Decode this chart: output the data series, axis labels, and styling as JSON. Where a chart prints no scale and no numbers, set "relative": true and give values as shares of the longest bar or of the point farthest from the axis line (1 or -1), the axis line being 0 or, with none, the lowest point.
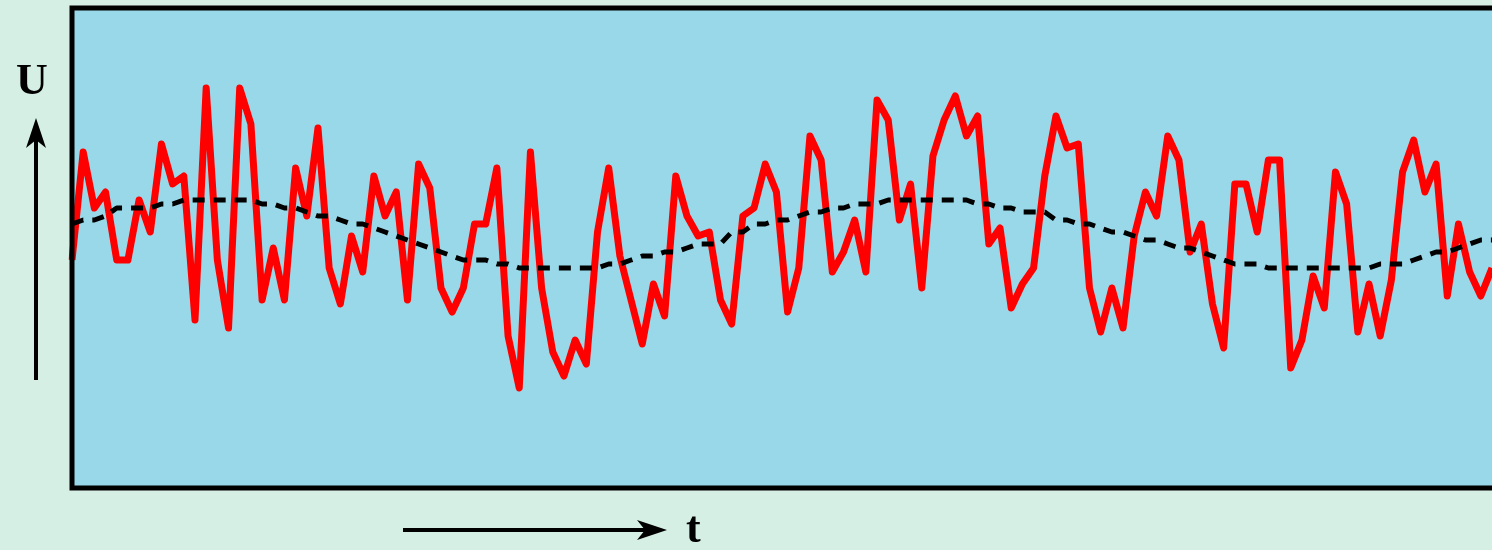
{
  "chart_data": {
    "type": "line",
    "relative": true,
    "xlabel": "t",
    "ylabel": "U",
    "categories": [
      null,
      null,
      null,
      null,
      null,
      null,
      null,
      null,
      null,
      null,
      null,
      null,
      null,
      null,
      null,
      null,
      null,
      null,
      null,
      null,
      null,
      null,
      null,
      null,
      null,
      null,
      null,
      null,
      null,
      null,
      null,
      null,
      null,
      null,
      null,
      null,
      null,
      null,
      null,
      null,
      null,
      null,
      null,
      null,
      null,
      null,
      null,
      null,
      null,
      null,
      null,
      null,
      null,
      null,
      null,
      null,
      null,
      null,
      null,
      null,
      null,
      null,
      null,
      null,
      null,
      null,
      null,
      null,
      null,
      null,
      null,
      null,
      null,
      null,
      null,
      null,
      null,
      null,
      null,
      null,
      null,
      null,
      null,
      null,
      null,
      null,
      null,
      null,
      null,
      null,
      null,
      null,
      null,
      null,
      null,
      null,
      null,
      null,
      null,
      null,
      null,
      null,
      null,
      null,
      null,
      null,
      null,
      null,
      null,
      null,
      null,
      null,
      null,
      null,
      null,
      null,
      null,
      null,
      null,
      null,
      null,
      null,
      null,
      null,
      null,
      null,
      null,
      null
    ],
    "series": [
      {
        "color": "#000000",
        "line_style": "dashed",
        "values": [
          0.66,
          0.67,
          0.67,
          0.68,
          0.7,
          0.7,
          0.7,
          0.7,
          0.71,
          0.71,
          0.72,
          0.72,
          0.72,
          0.72,
          0.72,
          0.72,
          0.72,
          0.71,
          0.71,
          0.7,
          0.7,
          0.69,
          0.68,
          0.68,
          0.67,
          0.66,
          0.66,
          0.65,
          0.64,
          0.63,
          0.62,
          0.61,
          0.6,
          0.59,
          0.58,
          0.57,
          0.57,
          0.57,
          0.56,
          0.56,
          0.55,
          0.55,
          0.55,
          0.55,
          0.55,
          0.55,
          0.55,
          0.55,
          0.56,
          0.56,
          0.57,
          0.58,
          0.58,
          0.59,
          0.59,
          0.6,
          0.61,
          0.61,
          0.61,
          0.64,
          0.64,
          0.66,
          0.66,
          0.67,
          0.67,
          0.68,
          0.69,
          0.69,
          0.7,
          0.7,
          0.71,
          0.71,
          0.71,
          0.72,
          0.72,
          0.72,
          0.72,
          0.72,
          0.72,
          0.72,
          0.72,
          0.71,
          0.71,
          0.7,
          0.7,
          0.69,
          0.69,
          0.69,
          0.67,
          0.67,
          0.66,
          0.66,
          0.65,
          0.64,
          0.64,
          0.63,
          0.62,
          0.62,
          0.61,
          0.6,
          0.6,
          0.59,
          0.58,
          0.57,
          0.56,
          0.56,
          0.56,
          0.55,
          0.55,
          0.55,
          0.55,
          0.55,
          0.55,
          0.55,
          0.55,
          0.55,
          0.55,
          0.56,
          0.56,
          0.56,
          0.57,
          0.58,
          0.59,
          0.59,
          0.6,
          0.61,
          0.62,
          0.62
        ]
      },
      {
        "color": "#ff0000",
        "line_style": "solid",
        "values": [
          0.57,
          0.84,
          0.7,
          0.74,
          0.57,
          0.57,
          0.72,
          0.64,
          0.86,
          0.76,
          0.78,
          0.42,
          1.0,
          0.57,
          0.4,
          1.0,
          0.91,
          0.47,
          0.6,
          0.47,
          0.8,
          0.68,
          0.9,
          0.55,
          0.46,
          0.63,
          0.54,
          0.78,
          0.68,
          0.74,
          0.47,
          0.81,
          0.75,
          0.5,
          0.44,
          0.5,
          0.66,
          0.66,
          0.8,
          0.38,
          0.25,
          0.84,
          0.5,
          0.34,
          0.28,
          0.37,
          0.31,
          0.64,
          0.8,
          0.58,
          0.47,
          0.36,
          0.51,
          0.43,
          0.78,
          0.68,
          0.63,
          0.64,
          0.47,
          0.41,
          0.68,
          0.7,
          0.81,
          0.74,
          0.44,
          0.55,
          0.88,
          0.82,
          0.54,
          0.59,
          0.67,
          0.54,
          0.97,
          0.92,
          0.67,
          0.76,
          0.5,
          0.83,
          0.92,
          0.98,
          0.88,
          0.93,
          0.61,
          0.65,
          0.45,
          0.51,
          0.55,
          0.78,
          0.93,
          0.85,
          0.86,
          0.5,
          0.39,
          0.5,
          0.4,
          0.63,
          0.74,
          0.68,
          0.88,
          0.82,
          0.59,
          0.66,
          0.46,
          0.35,
          0.76,
          0.76,
          0.64,
          0.82,
          0.82,
          0.3,
          0.37,
          0.53,
          0.45,
          0.79,
          0.71,
          0.39,
          0.51,
          0.38,
          0.52,
          0.79,
          0.87,
          0.74,
          0.81,
          0.48,
          0.66,
          0.54,
          0.48,
          0.55
        ]
      }
    ]
  }
}
